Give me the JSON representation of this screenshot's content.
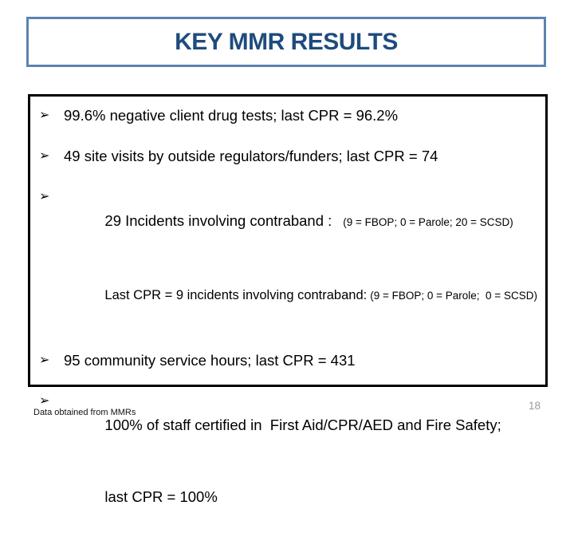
{
  "title": "KEY MMR RESULTS",
  "content": {
    "bullet_glyph": "➢",
    "bullets": {
      "b1": {
        "text": "99.6% negative client drug tests; last CPR = 96.2%"
      },
      "b2": {
        "text": "49 site visits by outside regulators/funders; last CPR = 74"
      },
      "b3": {
        "line1_main": "29 Incidents involving contraband :",
        "line1_paren": "(9 = FBOP; 0 = Parole; 20 = SCSD)",
        "line2_main": "Last CPR = 9 incidents involving contraband:",
        "line2_paren": "(9 = FBOP; 0 = Parole;  0 = SCSD)"
      },
      "b4": {
        "text": "95 community service hours; last CPR = 431"
      },
      "b5": {
        "line1": "100% of staff certified in  First Aid/CPR/AED and Fire Safety;",
        "line2": "last CPR = 100%"
      }
    }
  },
  "footer": {
    "note": "Data obtained from MMRs",
    "page_number": "18"
  },
  "colors": {
    "title_text": "#1F4B7D",
    "title_border": "#5B84B0",
    "box_border": "#000000",
    "page_number": "#9a9a9a"
  }
}
